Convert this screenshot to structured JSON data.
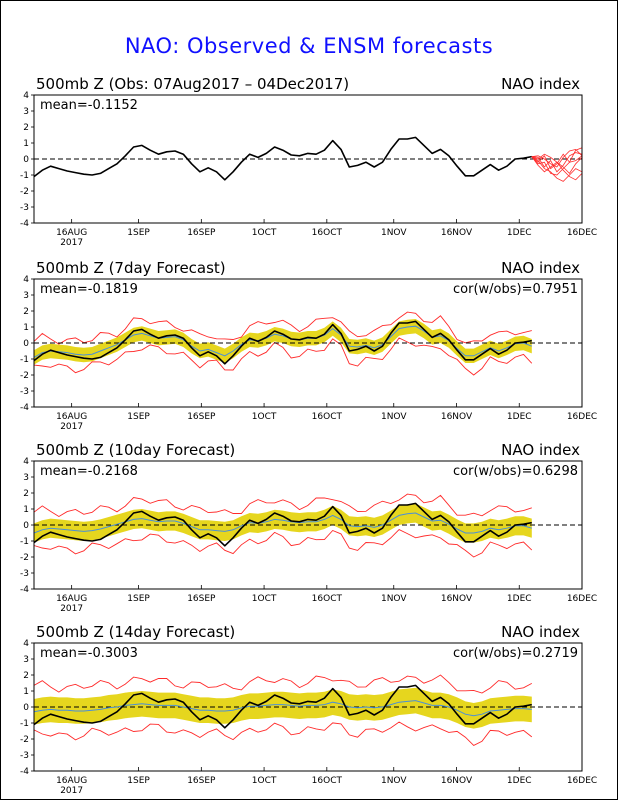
{
  "title": "NAO: Observed & ENSM forecasts",
  "colors": {
    "title": "#1010ff",
    "observed": "#000000",
    "spread": "#e6d61e",
    "envelope": "#ff2a2a",
    "ens_mean": "#4a8fd8"
  },
  "chart_data": [
    {
      "type": "line",
      "panel_title": "500mb Z (Obs: 07Aug2017 – 04Dec2017)",
      "right_label": "NAO index",
      "mean_label": "mean=-0.1152",
      "corr_label": "",
      "ylim": [
        -4,
        4
      ],
      "yticks": [
        "4",
        "3",
        "2",
        "1",
        "0",
        "-1",
        "-2",
        "-3",
        "-4"
      ],
      "xticks": [
        "16AUG",
        "1SEP",
        "16SEP",
        "1OCT",
        "16OCT",
        "1NOV",
        "16NOV",
        "1DEC",
        "16DEC"
      ],
      "year_label": "2017",
      "observed": [
        -1.1,
        -0.7,
        -0.45,
        -0.6,
        -0.75,
        -0.85,
        -0.95,
        -1.0,
        -0.9,
        -0.6,
        -0.3,
        0.2,
        0.75,
        0.85,
        0.55,
        0.3,
        0.45,
        0.5,
        0.3,
        -0.3,
        -0.8,
        -0.55,
        -0.8,
        -1.3,
        -0.8,
        -0.2,
        0.3,
        0.1,
        0.35,
        0.75,
        0.55,
        0.25,
        0.2,
        0.35,
        0.3,
        0.55,
        1.15,
        0.6,
        -0.5,
        -0.4,
        -0.2,
        -0.5,
        -0.2,
        0.6,
        1.25,
        1.25,
        1.35,
        0.85,
        0.35,
        0.6,
        0.2,
        -0.45,
        -1.05,
        -1.05,
        -0.7,
        -0.35,
        -0.7,
        -0.45,
        0.0,
        0.05,
        0.15
      ],
      "members": [
        [
          0.15,
          -0.2,
          0.2,
          -0.6,
          -0.3,
          0.3,
          -0.2,
          0.55,
          0.7
        ],
        [
          0.15,
          0.1,
          -0.5,
          -0.1,
          -0.8,
          -0.4,
          0.2,
          0.4,
          0.3
        ],
        [
          0.15,
          -0.3,
          -0.2,
          -0.9,
          -1.0,
          -0.6,
          -0.2,
          -0.1,
          0.2
        ],
        [
          0.15,
          0.2,
          0.0,
          -0.3,
          -0.5,
          0.1,
          0.5,
          0.6,
          0.2
        ],
        [
          0.15,
          -0.1,
          -0.6,
          -0.8,
          -1.2,
          -1.4,
          -1.0,
          -0.6,
          -0.8
        ],
        [
          0.15,
          0.0,
          0.3,
          0.1,
          -0.2,
          -0.5,
          -0.9,
          -0.3,
          0.1
        ],
        [
          0.15,
          -0.4,
          -0.8,
          -0.5,
          -0.2,
          -0.7,
          -1.1,
          -1.3,
          -0.9
        ]
      ],
      "ens_mean": [],
      "spread_width": 0,
      "envelope_width": 0
    },
    {
      "type": "line",
      "panel_title": "500mb Z (7day Forecast)",
      "right_label": "NAO index",
      "mean_label": "mean=-0.1819",
      "corr_label": "cor(w/obs)=0.7951",
      "ylim": [
        -4,
        4
      ],
      "yticks": [
        "4",
        "3",
        "2",
        "1",
        "0",
        "-1",
        "-2",
        "-3",
        "-4"
      ],
      "xticks": [
        "16AUG",
        "1SEP",
        "16SEP",
        "1OCT",
        "16OCT",
        "1NOV",
        "16NOV",
        "1DEC",
        "16DEC"
      ],
      "year_label": "2017",
      "observed": [
        -1.1,
        -0.7,
        -0.45,
        -0.6,
        -0.75,
        -0.85,
        -0.95,
        -1.0,
        -0.9,
        -0.6,
        -0.3,
        0.2,
        0.75,
        0.85,
        0.55,
        0.3,
        0.45,
        0.5,
        0.3,
        -0.3,
        -0.8,
        -0.55,
        -0.8,
        -1.3,
        -0.8,
        -0.2,
        0.3,
        0.1,
        0.35,
        0.75,
        0.55,
        0.25,
        0.2,
        0.35,
        0.3,
        0.55,
        1.15,
        0.6,
        -0.5,
        -0.4,
        -0.2,
        -0.5,
        -0.2,
        0.6,
        1.25,
        1.25,
        1.35,
        0.85,
        0.35,
        0.6,
        0.2,
        -0.45,
        -1.05,
        -1.05,
        -0.7,
        -0.35,
        -0.7,
        -0.45,
        0.0,
        0.05,
        0.15
      ],
      "members": [],
      "ens_mean": [
        -0.9,
        -0.6,
        -0.5,
        -0.55,
        -0.6,
        -0.7,
        -0.75,
        -0.7,
        -0.5,
        -0.3,
        -0.1,
        0.2,
        0.5,
        0.6,
        0.45,
        0.3,
        0.35,
        0.4,
        0.2,
        -0.2,
        -0.5,
        -0.4,
        -0.6,
        -0.8,
        -0.5,
        -0.1,
        0.2,
        0.15,
        0.3,
        0.55,
        0.45,
        0.25,
        0.2,
        0.3,
        0.3,
        0.5,
        0.9,
        0.5,
        -0.2,
        -0.25,
        -0.15,
        -0.3,
        -0.1,
        0.4,
        0.9,
        1.0,
        1.05,
        0.75,
        0.35,
        0.45,
        0.15,
        -0.35,
        -0.8,
        -0.8,
        -0.55,
        -0.3,
        -0.5,
        -0.3,
        -0.05,
        0.0,
        -0.2
      ],
      "spread_width": 0.45,
      "envelope_width": 0.85
    },
    {
      "type": "line",
      "panel_title": "500mb Z (10day Forecast)",
      "right_label": "NAO index",
      "mean_label": "mean=-0.2168",
      "corr_label": "cor(w/obs)=0.6298",
      "ylim": [
        -4,
        4
      ],
      "yticks": [
        "4",
        "3",
        "2",
        "1",
        "0",
        "-1",
        "-2",
        "-3",
        "-4"
      ],
      "xticks": [
        "16AUG",
        "1SEP",
        "16SEP",
        "1OCT",
        "16OCT",
        "1NOV",
        "16NOV",
        "1DEC",
        "16DEC"
      ],
      "year_label": "2017",
      "observed": [
        -1.1,
        -0.7,
        -0.45,
        -0.6,
        -0.75,
        -0.85,
        -0.95,
        -1.0,
        -0.9,
        -0.6,
        -0.3,
        0.2,
        0.75,
        0.85,
        0.55,
        0.3,
        0.45,
        0.5,
        0.3,
        -0.3,
        -0.8,
        -0.55,
        -0.8,
        -1.3,
        -0.8,
        -0.2,
        0.3,
        0.1,
        0.35,
        0.75,
        0.55,
        0.25,
        0.2,
        0.35,
        0.3,
        0.55,
        1.15,
        0.6,
        -0.5,
        -0.4,
        -0.2,
        -0.5,
        -0.2,
        0.6,
        1.25,
        1.25,
        1.35,
        0.85,
        0.35,
        0.6,
        0.2,
        -0.45,
        -1.05,
        -1.05,
        -0.7,
        -0.35,
        -0.7,
        -0.45,
        0.0,
        0.05,
        0.15
      ],
      "members": [],
      "ens_mean": [
        -0.5,
        -0.3,
        -0.2,
        -0.25,
        -0.3,
        -0.35,
        -0.4,
        -0.35,
        -0.25,
        -0.1,
        0.05,
        0.2,
        0.35,
        0.4,
        0.3,
        0.2,
        0.25,
        0.25,
        0.1,
        -0.1,
        -0.3,
        -0.3,
        -0.35,
        -0.4,
        -0.3,
        -0.05,
        0.15,
        0.1,
        0.2,
        0.35,
        0.3,
        0.2,
        0.15,
        0.2,
        0.2,
        0.35,
        0.6,
        0.35,
        -0.05,
        -0.1,
        -0.05,
        -0.15,
        0.0,
        0.3,
        0.6,
        0.7,
        0.75,
        0.5,
        0.25,
        0.3,
        0.05,
        -0.25,
        -0.5,
        -0.5,
        -0.4,
        -0.2,
        -0.3,
        -0.2,
        -0.05,
        -0.05,
        -0.2
      ],
      "spread_width": 0.6,
      "envelope_width": 1.15
    },
    {
      "type": "line",
      "panel_title": "500mb Z (14day Forecast)",
      "right_label": "NAO index",
      "mean_label": "mean=-0.3003",
      "corr_label": "cor(w/obs)=0.2719",
      "ylim": [
        -4,
        4
      ],
      "yticks": [
        "4",
        "3",
        "2",
        "1",
        "0",
        "-1",
        "-2",
        "-3",
        "-4"
      ],
      "xticks": [
        "16AUG",
        "1SEP",
        "16SEP",
        "1OCT",
        "16OCT",
        "1NOV",
        "16NOV",
        "1DEC",
        "16DEC"
      ],
      "year_label": "2017",
      "observed": [
        -1.1,
        -0.7,
        -0.45,
        -0.6,
        -0.75,
        -0.85,
        -0.95,
        -1.0,
        -0.9,
        -0.6,
        -0.3,
        0.2,
        0.75,
        0.85,
        0.55,
        0.3,
        0.45,
        0.5,
        0.3,
        -0.3,
        -0.8,
        -0.55,
        -0.8,
        -1.3,
        -0.8,
        -0.2,
        0.3,
        0.1,
        0.35,
        0.75,
        0.55,
        0.25,
        0.2,
        0.35,
        0.3,
        0.55,
        1.15,
        0.6,
        -0.5,
        -0.4,
        -0.2,
        -0.5,
        -0.2,
        0.6,
        1.25,
        1.25,
        1.35,
        0.85,
        0.35,
        0.6,
        0.2,
        -0.45,
        -1.05,
        -1.05,
        -0.7,
        -0.35,
        -0.7,
        -0.45,
        0.0,
        0.05,
        0.15
      ],
      "members": [],
      "ens_mean": [
        -0.3,
        -0.2,
        -0.15,
        -0.2,
        -0.2,
        -0.25,
        -0.25,
        -0.2,
        -0.15,
        -0.05,
        0.0,
        0.1,
        0.15,
        0.2,
        0.15,
        0.1,
        0.1,
        0.1,
        0.0,
        -0.1,
        -0.2,
        -0.2,
        -0.25,
        -0.25,
        -0.2,
        -0.05,
        0.05,
        0.05,
        0.1,
        0.15,
        0.15,
        0.1,
        0.05,
        0.1,
        0.1,
        0.15,
        0.3,
        0.2,
        0.0,
        -0.05,
        0.0,
        -0.05,
        0.0,
        0.15,
        0.3,
        0.35,
        0.4,
        0.25,
        0.1,
        0.1,
        0.0,
        -0.2,
        -0.45,
        -0.55,
        -0.45,
        -0.25,
        -0.2,
        -0.15,
        -0.1,
        -0.1,
        -0.15
      ],
      "spread_width": 0.8,
      "envelope_width": 1.5
    }
  ]
}
